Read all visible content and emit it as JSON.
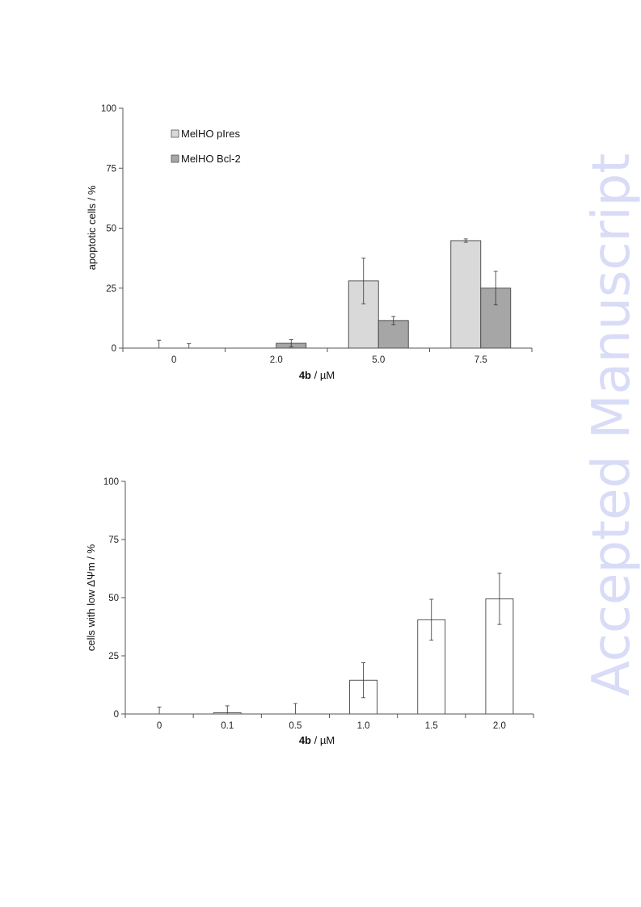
{
  "watermark": "Accepted Manuscript",
  "chart_data": [
    {
      "type": "bar",
      "ylabel": "apoptotic cells / %",
      "xlabel_bold": "4b",
      "xlabel_rest": " / µM",
      "ylim": [
        0,
        100
      ],
      "yticks": [
        "0",
        "25",
        "50",
        "75",
        "100"
      ],
      "categories": [
        "0",
        "2.0",
        "5.0",
        "7.5"
      ],
      "legend_position": "top-left",
      "series": [
        {
          "name": "MelHO pIres",
          "color": "#d9d9d9",
          "values": [
            0,
            0,
            28,
            44.8
          ],
          "errors": [
            3.3,
            0,
            9.5,
            0.7
          ]
        },
        {
          "name": "MelHO Bcl-2",
          "color": "#a6a6a6",
          "values": [
            0,
            2,
            11.5,
            25
          ],
          "errors": [
            1.8,
            1.5,
            1.7,
            7
          ]
        }
      ]
    },
    {
      "type": "bar",
      "ylabel": "cells with low ΔΨm / %",
      "xlabel_bold": "4b",
      "xlabel_rest": " / µM",
      "ylim": [
        0,
        100
      ],
      "yticks": [
        "0",
        "25",
        "50",
        "75",
        "100"
      ],
      "categories": [
        "0",
        "0.1",
        "0.5",
        "1.0",
        "1.5",
        "2.0"
      ],
      "series": [
        {
          "color": "#ffffff",
          "values": [
            0,
            0.5,
            0,
            14.5,
            40.5,
            49.5
          ],
          "errors": [
            3,
            3,
            4.5,
            7.5,
            8.8,
            11
          ]
        }
      ]
    }
  ]
}
